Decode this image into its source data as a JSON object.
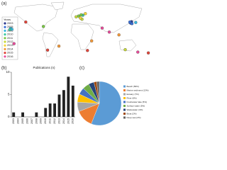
{
  "chart_data": [
    {
      "type": "map",
      "label": "(a)",
      "legend_title": "Years",
      "xlim": [
        -180,
        180
      ],
      "ylim": [
        -60,
        85
      ],
      "series": [
        {
          "name": "2003",
          "color": "#2b3a8f",
          "x": [
            128,
            129,
            130
          ],
          "values": [
            36,
            34,
            38
          ]
        },
        {
          "name": "2005",
          "color": "#3a6fd8",
          "x": [
            127,
            131,
            126
          ],
          "values": [
            35,
            33,
            37
          ]
        },
        {
          "name": "2006",
          "color": "#38b8e0",
          "x": [
            -158,
            -155,
            140
          ],
          "values": [
            21,
            19,
            36
          ]
        },
        {
          "name": "2010",
          "color": "#3cc8a0",
          "x": [
            -160,
            14
          ],
          "values": [
            18,
            54
          ]
        },
        {
          "name": "2011",
          "color": "#7ac943",
          "x": [
            10,
            4,
            -80
          ],
          "values": [
            55,
            52,
            26
          ]
        },
        {
          "name": "2012",
          "color": "#c8d93a",
          "x": [
            12,
            -2,
            115
          ],
          "values": [
            44,
            50,
            -32
          ]
        },
        {
          "name": "2013",
          "color": "#f3d53a",
          "x": [
            20,
            8
          ],
          "values": [
            58,
            47
          ]
        },
        {
          "name": "2014",
          "color": "#f39a3a",
          "x": [
            -43,
            100,
            35
          ],
          "values": [
            -23,
            5,
            -10
          ]
        },
        {
          "name": "2015",
          "color": "#e0453a",
          "x": [
            -70,
            170,
            25,
            -122
          ],
          "values": [
            -33,
            -40,
            -34,
            37
          ]
        },
        {
          "name": "2016",
          "color": "#e84c9a",
          "x": [
            77,
            60,
            -150,
            145
          ],
          "values": [
            12,
            22,
            -17,
            -38
          ]
        }
      ]
    },
    {
      "type": "bar",
      "label": "(b)",
      "ylabel": "Publications (n)",
      "categories": [
        "2003",
        "2004",
        "2005",
        "2006",
        "2007",
        "2008",
        "2009",
        "2010",
        "2011",
        "2012",
        "2013",
        "2014",
        "2015",
        "2016"
      ],
      "values": [
        1,
        0,
        1,
        0,
        0,
        1,
        0,
        2,
        3,
        3,
        5,
        6,
        9,
        7
      ],
      "color": "#222222",
      "ylim": [
        0,
        10
      ],
      "yticks": [
        0,
        5,
        10
      ]
    },
    {
      "type": "pie",
      "label": "(c)",
      "categories": [
        "Beach (56%)",
        "Marine sediment (13%)",
        "Estuary (7%)",
        "River (6%)",
        "Freshwater lake (5%)",
        "Surface water (5%)",
        "Wastewater (4%)",
        "Biota (2%)",
        "Deep sea (2%)"
      ],
      "values": [
        56,
        13,
        7,
        6,
        5,
        5,
        4,
        2,
        2
      ],
      "colors": [
        "#5b9bd5",
        "#ed7d31",
        "#a5a5a5",
        "#ffc000",
        "#4472c4",
        "#70ad47",
        "#264478",
        "#9e480e",
        "#636363"
      ]
    }
  ]
}
